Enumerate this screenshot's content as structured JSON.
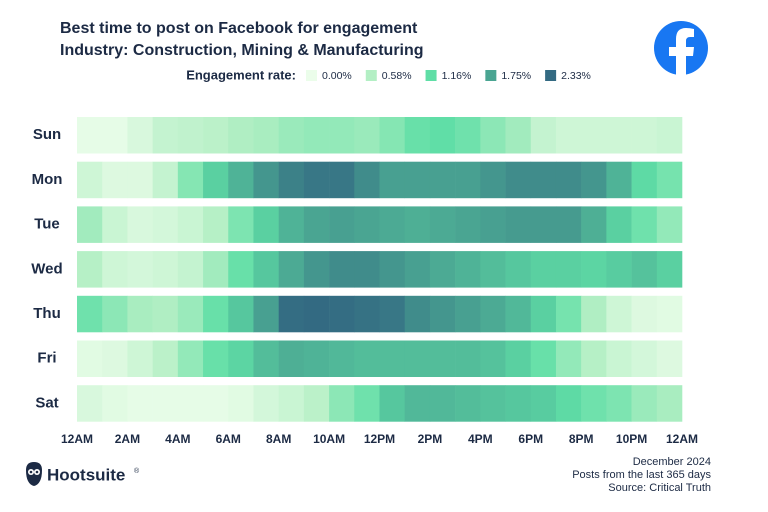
{
  "chart_data": {
    "type": "heatmap",
    "title": "Best time to post on Facebook for engagement",
    "subtitle": "Industry: Construction, Mining & Manufacturing",
    "legend_title": "Engagement rate:",
    "colorbar": {
      "ticks": [
        {
          "value": 0,
          "label": "0.00%"
        },
        {
          "value": 0.58,
          "label": "0.58%"
        },
        {
          "value": 1.16,
          "label": "1.16%"
        },
        {
          "value": 1.75,
          "label": "1.75%"
        },
        {
          "value": 2.33,
          "label": "2.33%"
        }
      ],
      "colors": [
        "#ebfdea",
        "#b3efc4",
        "#5fdea6",
        "#4aa592",
        "#336a82"
      ]
    },
    "xlim": [
      0,
      24
    ],
    "xticks": [
      {
        "value": 0,
        "label": "12AM"
      },
      {
        "value": 2,
        "label": "2AM"
      },
      {
        "value": 4,
        "label": "4AM"
      },
      {
        "value": 6,
        "label": "6AM"
      },
      {
        "value": 8,
        "label": "8AM"
      },
      {
        "value": 10,
        "label": "10AM"
      },
      {
        "value": 12,
        "label": "12PM"
      },
      {
        "value": 14,
        "label": "2PM"
      },
      {
        "value": 16,
        "label": "4PM"
      },
      {
        "value": 18,
        "label": "6PM"
      },
      {
        "value": 20,
        "label": "8PM"
      },
      {
        "value": 22,
        "label": "10PM"
      },
      {
        "value": 24,
        "label": "12AM"
      }
    ],
    "series": [
      {
        "name": "Sun",
        "values": [
          0.05,
          0.05,
          0.2,
          0.4,
          0.45,
          0.5,
          0.6,
          0.65,
          0.75,
          0.8,
          0.8,
          0.75,
          0.9,
          1.1,
          1.15,
          1.05,
          0.85,
          0.7,
          0.4,
          0.3,
          0.3,
          0.3,
          0.3,
          0.35
        ]
      },
      {
        "name": "Mon",
        "values": [
          0.3,
          0.15,
          0.15,
          0.4,
          0.9,
          1.3,
          1.6,
          1.9,
          2.1,
          2.2,
          2.2,
          2.0,
          1.8,
          1.8,
          1.8,
          1.8,
          1.9,
          2.0,
          2.0,
          2.0,
          1.9,
          1.6,
          1.2,
          1.0
        ]
      },
      {
        "name": "Tue",
        "values": [
          0.7,
          0.35,
          0.2,
          0.25,
          0.35,
          0.55,
          0.95,
          1.3,
          1.6,
          1.75,
          1.8,
          1.75,
          1.7,
          1.65,
          1.7,
          1.75,
          1.8,
          1.85,
          1.85,
          1.85,
          1.65,
          1.3,
          1.05,
          0.8
        ]
      },
      {
        "name": "Wed",
        "values": [
          0.55,
          0.3,
          0.25,
          0.3,
          0.4,
          0.7,
          1.1,
          1.4,
          1.7,
          1.9,
          2.0,
          2.0,
          1.9,
          1.8,
          1.7,
          1.6,
          1.5,
          1.4,
          1.3,
          1.3,
          1.25,
          1.35,
          1.45,
          1.3
        ]
      },
      {
        "name": "Thu",
        "values": [
          1.05,
          0.85,
          0.65,
          0.6,
          0.75,
          1.1,
          1.4,
          1.8,
          2.3,
          2.33,
          2.3,
          2.25,
          2.2,
          2.0,
          1.9,
          1.8,
          1.7,
          1.55,
          1.3,
          1.0,
          0.6,
          0.3,
          0.15,
          0.1
        ]
      },
      {
        "name": "Fri",
        "values": [
          0.1,
          0.15,
          0.3,
          0.5,
          0.8,
          1.1,
          1.25,
          1.5,
          1.65,
          1.6,
          1.55,
          1.5,
          1.5,
          1.5,
          1.5,
          1.5,
          1.45,
          1.3,
          1.1,
          0.8,
          0.55,
          0.35,
          0.25,
          0.15
        ]
      },
      {
        "name": "Sat",
        "values": [
          0.2,
          0.1,
          0.05,
          0.05,
          0.05,
          0.05,
          0.1,
          0.25,
          0.35,
          0.5,
          0.85,
          1.05,
          1.4,
          1.55,
          1.55,
          1.5,
          1.45,
          1.4,
          1.35,
          1.2,
          1.05,
          0.95,
          0.75,
          0.65
        ]
      }
    ],
    "brand": "Hootsuite",
    "brand_mark": "®",
    "notes": [
      "December 2024",
      "Posts from the last 365 days",
      "Source: Critical Truth"
    ]
  }
}
